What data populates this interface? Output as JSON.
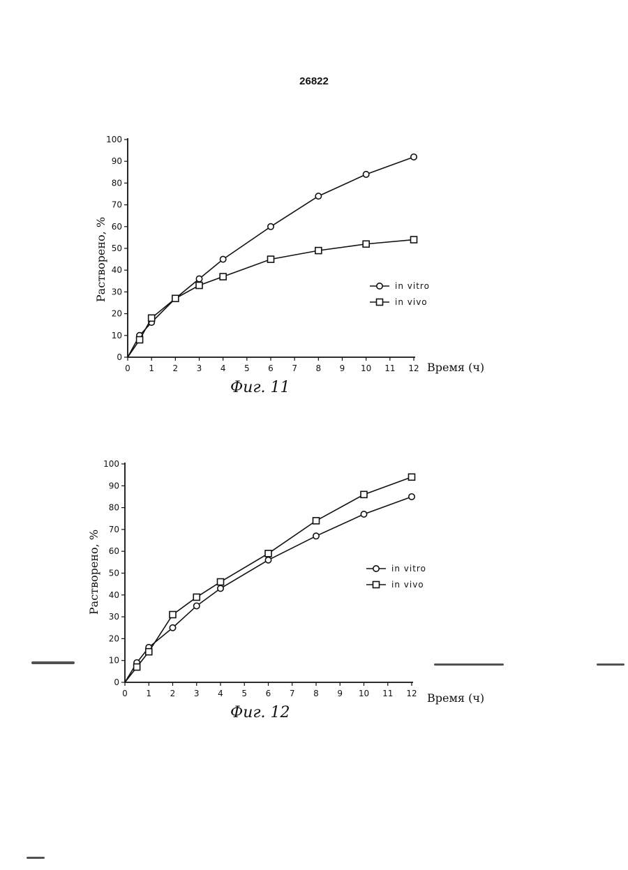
{
  "page_number": "26822",
  "legend_labels": {
    "in_vitro": "in vitro",
    "in_vivo": "in vivo"
  },
  "chart_data": [
    {
      "type": "line",
      "caption": "Фиг. 11",
      "ylabel": "Растворено, %",
      "xlabel": "Время (ч)",
      "xlim": [
        0,
        12
      ],
      "ylim": [
        0,
        100
      ],
      "x_ticks": [
        0,
        1,
        2,
        3,
        4,
        5,
        6,
        7,
        8,
        9,
        10,
        11,
        12
      ],
      "y_ticks": [
        0,
        10,
        20,
        30,
        40,
        50,
        60,
        70,
        80,
        90,
        100
      ],
      "legend_position": "right-middle",
      "series": [
        {
          "name": "in vitro",
          "marker": "circle",
          "x": [
            0,
            0.5,
            1,
            2,
            3,
            4,
            6,
            8,
            10,
            12
          ],
          "y": [
            0,
            10,
            16,
            27,
            36,
            45,
            60,
            74,
            84,
            92
          ]
        },
        {
          "name": "in vivo",
          "marker": "square",
          "x": [
            0,
            0.5,
            1,
            2,
            3,
            4,
            6,
            8,
            10,
            12
          ],
          "y": [
            0,
            8,
            18,
            27,
            33,
            37,
            45,
            49,
            52,
            54
          ]
        }
      ]
    },
    {
      "type": "line",
      "caption": "Фиг. 12",
      "ylabel": "Растворено, %",
      "xlabel": "Время (ч)",
      "xlim": [
        0,
        12
      ],
      "ylim": [
        0,
        100
      ],
      "x_ticks": [
        0,
        1,
        2,
        3,
        4,
        5,
        6,
        7,
        8,
        9,
        10,
        11,
        12
      ],
      "y_ticks": [
        0,
        10,
        20,
        30,
        40,
        50,
        60,
        70,
        80,
        90,
        100
      ],
      "legend_position": "right-middle",
      "series": [
        {
          "name": "in vitro",
          "marker": "circle",
          "x": [
            0,
            0.5,
            1,
            2,
            3,
            4,
            6,
            8,
            10,
            12
          ],
          "y": [
            0,
            9,
            16,
            25,
            35,
            43,
            56,
            67,
            77,
            85
          ]
        },
        {
          "name": "in vivo",
          "marker": "square",
          "x": [
            0,
            0.5,
            1,
            2,
            3,
            4,
            6,
            8,
            10,
            12
          ],
          "y": [
            0,
            7,
            14,
            31,
            39,
            46,
            59,
            74,
            86,
            94
          ]
        }
      ]
    }
  ]
}
